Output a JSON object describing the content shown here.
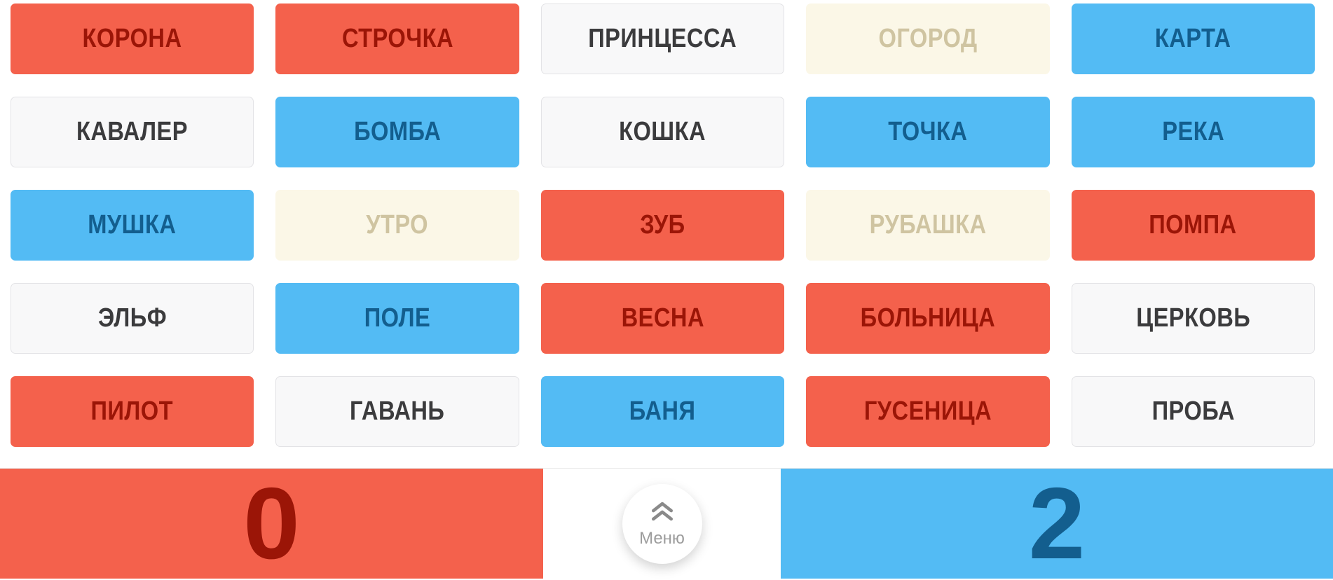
{
  "board": {
    "cards": [
      {
        "word": "КОРОНА",
        "state": "red"
      },
      {
        "word": "СТРОЧКА",
        "state": "red"
      },
      {
        "word": "ПРИНЦЕССА",
        "state": "neutral"
      },
      {
        "word": "ОГОРОД",
        "state": "revealed-neutral"
      },
      {
        "word": "КАРТА",
        "state": "blue"
      },
      {
        "word": "КАВАЛЕР",
        "state": "neutral"
      },
      {
        "word": "БОМБА",
        "state": "blue"
      },
      {
        "word": "КОШКА",
        "state": "neutral"
      },
      {
        "word": "ТОЧКА",
        "state": "blue"
      },
      {
        "word": "РЕКА",
        "state": "blue"
      },
      {
        "word": "МУШКА",
        "state": "blue"
      },
      {
        "word": "УТРО",
        "state": "revealed-neutral"
      },
      {
        "word": "ЗУБ",
        "state": "red"
      },
      {
        "word": "РУБАШКА",
        "state": "revealed-neutral"
      },
      {
        "word": "ПОМПА",
        "state": "red"
      },
      {
        "word": "ЭЛЬФ",
        "state": "neutral"
      },
      {
        "word": "ПОЛЕ",
        "state": "blue"
      },
      {
        "word": "ВЕСНА",
        "state": "red"
      },
      {
        "word": "БОЛЬНИЦА",
        "state": "red"
      },
      {
        "word": "ЦЕРКОВЬ",
        "state": "neutral"
      },
      {
        "word": "ПИЛОТ",
        "state": "red"
      },
      {
        "word": "ГАВАНЬ",
        "state": "neutral"
      },
      {
        "word": "БАНЯ",
        "state": "blue"
      },
      {
        "word": "ГУСЕНИЦА",
        "state": "red"
      },
      {
        "word": "ПРОБА",
        "state": "neutral"
      }
    ]
  },
  "footer": {
    "red_score": "0",
    "blue_score": "2",
    "menu_label": "Меню"
  },
  "icons": {
    "menu_icon": "double-chevron-up"
  },
  "colors": {
    "red_card_bg": "#f4614c",
    "red_card_text": "#9b1507",
    "blue_card_bg": "#53bbf4",
    "blue_card_text": "#135e8e",
    "neutral_card_bg": "#f8f8f9",
    "neutral_card_text": "#3b3b3d",
    "neutral_card_border": "#e3e3e6",
    "revealed_neutral_bg": "#fbf7e7",
    "revealed_neutral_text": "#cfc4a1",
    "menu_icon": "#8a8a8a",
    "menu_label": "#9c9c9c"
  }
}
